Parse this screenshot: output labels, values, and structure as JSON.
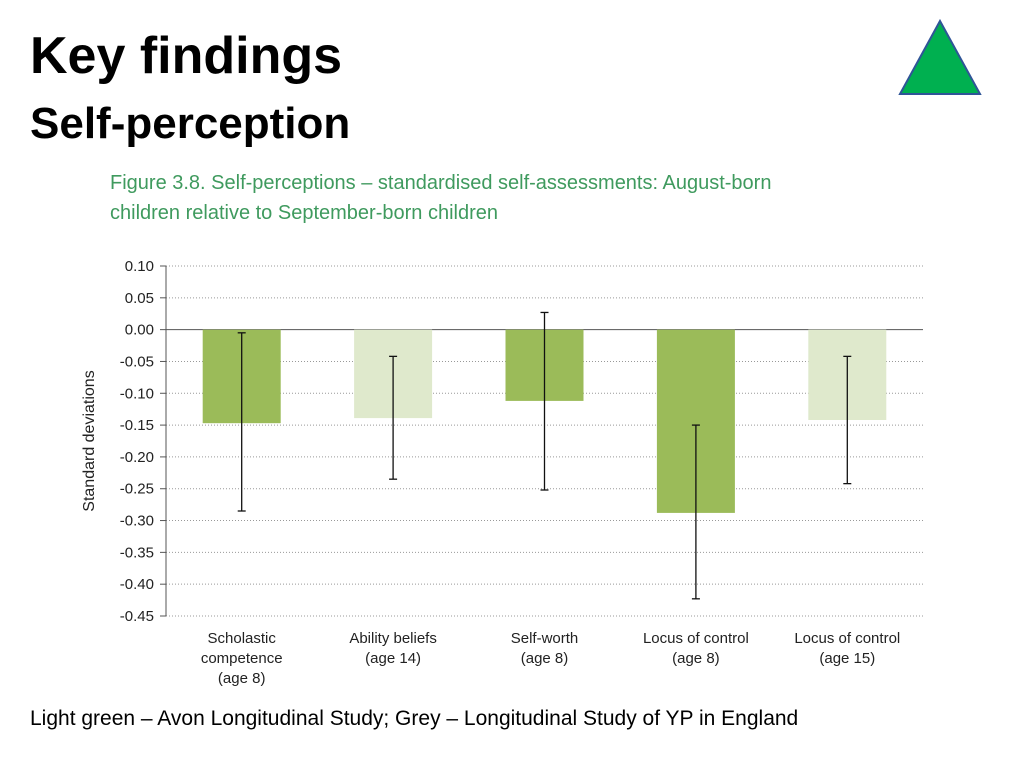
{
  "slide": {
    "title": "Key findings",
    "subtitle": "Self-perception",
    "footer": "Light green – Avon Longitudinal Study; Grey – Longitudinal Study of YP in England"
  },
  "nav_icon": {
    "name": "triangle-up-icon",
    "fill": "#00b050",
    "stroke": "#2f5597"
  },
  "colors": {
    "dark_green": "#9bbb59",
    "light_green": "#dfe9cc",
    "caption": "#3f9a5e"
  },
  "chart_data": {
    "type": "bar",
    "title": "Figure 3.8. Self-perceptions – standardised self-assessments: August-born children relative to September-born children",
    "xlabel": "",
    "ylabel": "Standard deviations",
    "ylim": [
      -0.45,
      0.1
    ],
    "yticks": [
      0.1,
      0.05,
      0.0,
      -0.05,
      -0.1,
      -0.15,
      -0.2,
      -0.25,
      -0.3,
      -0.35,
      -0.4,
      -0.45
    ],
    "ytick_labels": [
      "0.10",
      "0.05",
      "0.00",
      "-0.05",
      "-0.10",
      "-0.15",
      "-0.20",
      "-0.25",
      "-0.30",
      "-0.35",
      "-0.40",
      "-0.45"
    ],
    "grid": true,
    "categories": [
      [
        "Scholastic",
        "competence",
        "(age 8)"
      ],
      [
        "Ability beliefs",
        "(age 14)"
      ],
      [
        "Self-worth",
        "(age 8)"
      ],
      [
        "Locus of control",
        "(age 8)"
      ],
      [
        "Locus of control",
        "(age 15)"
      ]
    ],
    "values": [
      -0.147,
      -0.139,
      -0.112,
      -0.288,
      -0.142
    ],
    "error_low": [
      -0.285,
      -0.235,
      -0.252,
      -0.423,
      -0.242
    ],
    "error_high": [
      -0.005,
      -0.042,
      0.027,
      -0.15,
      -0.042
    ],
    "bar_colors": [
      "#9bbb59",
      "#dfe9cc",
      "#9bbb59",
      "#9bbb59",
      "#dfe9cc"
    ]
  }
}
